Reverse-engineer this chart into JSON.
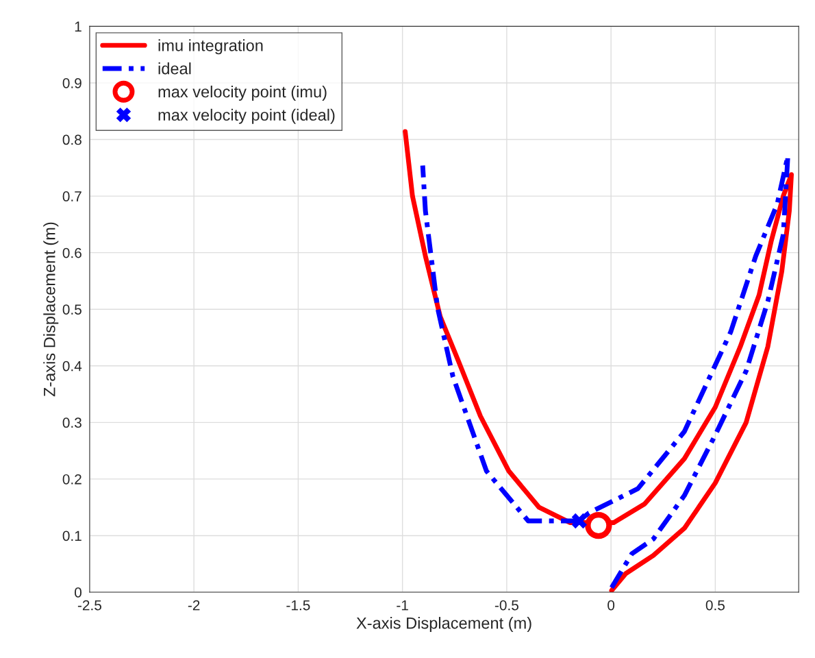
{
  "chart_data": {
    "type": "line",
    "xlabel": "X-axis Displacement (m)",
    "ylabel": "Z-axis Displacement (m)",
    "xlim": [
      -2.5,
      0.9
    ],
    "xticks": [
      -2.5,
      -2,
      -1.5,
      -1,
      -0.5,
      0,
      0.5
    ],
    "ylim": [
      0,
      1
    ],
    "yticks": [
      0,
      0.1,
      0.2,
      0.3,
      0.4,
      0.5,
      0.6,
      0.7,
      0.8,
      0.9,
      1
    ],
    "grid": true,
    "legend": "top left",
    "series": [
      {
        "name": "imu integration",
        "color": "#ff0000",
        "line_style": "solid",
        "x": [
          0.003,
          0.071,
          0.203,
          0.352,
          0.5,
          0.648,
          0.752,
          0.819,
          0.855,
          0.865,
          0.826,
          0.768,
          0.71,
          0.62,
          0.5,
          0.352,
          0.161,
          0.013,
          -0.197,
          -0.345,
          -0.49,
          -0.626,
          -0.73,
          -0.819,
          -0.89,
          -0.952,
          -0.987
        ],
        "values": [
          0.003,
          0.033,
          0.065,
          0.113,
          0.193,
          0.3,
          0.434,
          0.567,
          0.674,
          0.738,
          0.7,
          0.62,
          0.525,
          0.434,
          0.327,
          0.236,
          0.156,
          0.123,
          0.123,
          0.15,
          0.214,
          0.311,
          0.407,
          0.487,
          0.594,
          0.7,
          0.814
        ]
      },
      {
        "name": "ideal",
        "color": "#0000ff",
        "line_style": "dashed",
        "x": [
          0.003,
          0.1,
          0.203,
          0.352,
          0.5,
          0.648,
          0.752,
          0.826,
          0.848,
          0.797,
          0.694,
          0.574,
          0.352,
          0.129,
          -0.106,
          -0.152,
          -0.397,
          -0.597,
          -0.758,
          -0.832,
          -0.89,
          -0.903
        ],
        "values": [
          0.008,
          0.068,
          0.094,
          0.171,
          0.278,
          0.391,
          0.514,
          0.632,
          0.771,
          0.686,
          0.594,
          0.46,
          0.284,
          0.183,
          0.14,
          0.126,
          0.126,
          0.214,
          0.381,
          0.503,
          0.674,
          0.754
        ]
      },
      {
        "name": "max velocity point (imu)",
        "type": "scatter",
        "color": "#ff0000",
        "marker": "circle",
        "x": [
          -0.06
        ],
        "values": [
          0.118
        ]
      },
      {
        "name": "max velocity point (ideal)",
        "type": "scatter",
        "color": "#0000ff",
        "marker": "cross",
        "x": [
          -0.152
        ],
        "values": [
          0.126
        ]
      }
    ]
  }
}
